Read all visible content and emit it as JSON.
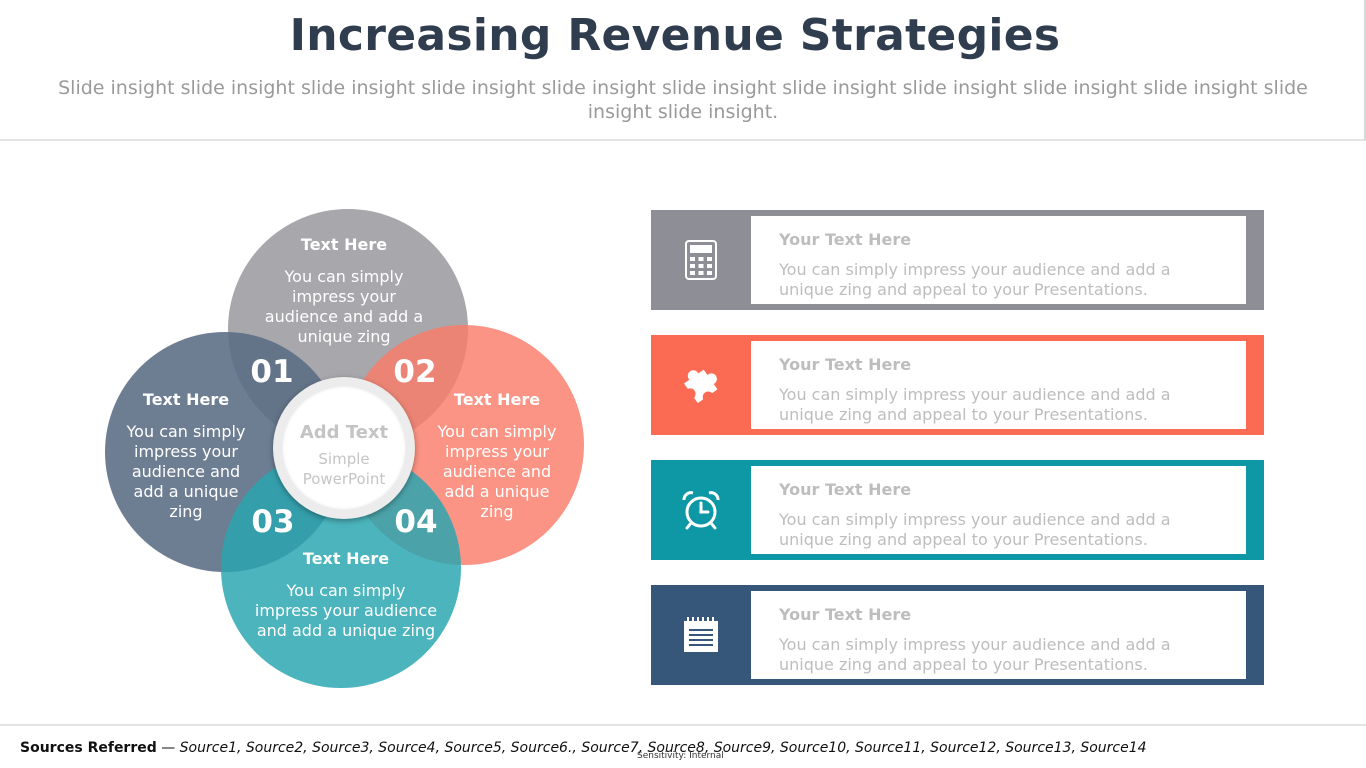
{
  "title": "Increasing Revenue Strategies",
  "subtitle": "Slide insight slide insight slide insight slide insight slide insight slide insight slide insight slide insight slide insight slide insight slide insight slide insight.",
  "petals": [
    {
      "number": "01",
      "title": "Text  Here",
      "body": "You can simply impress your audience and add a unique zing",
      "color": "#a7a6ab"
    },
    {
      "number": "02",
      "title": "Text  Here",
      "body": "You can simply impress your audience and add a unique zing",
      "color": "#fa8670"
    },
    {
      "number": "03",
      "title": "Text  Here",
      "body": "You can simply impress your audience and add a unique zing",
      "color": "#6d7f95"
    },
    {
      "number": "04",
      "title": "Text  Here",
      "body": "You can simply impress your audience and add a unique zing",
      "color": "#3badb6"
    }
  ],
  "hub": {
    "title": "Add Text",
    "line1": "Simple",
    "line2": "PowerPoint"
  },
  "cards": [
    {
      "icon": "calculator-icon",
      "color": "#8e8e96",
      "title": "Your Text  Here",
      "body": "You can simply impress your audience and add a unique zing and appeal to your Presentations."
    },
    {
      "icon": "puzzle-icon",
      "color": "#fb6a52",
      "title": "Your Text  Here",
      "body": "You can simply impress your audience and add a unique zing and appeal to your Presentations."
    },
    {
      "icon": "alarm-clock-icon",
      "color": "#0e97a4",
      "title": "Your Text  Here",
      "body": "You can simply impress your audience and add a unique zing and appeal to your Presentations."
    },
    {
      "icon": "notepad-icon",
      "color": "#36567a",
      "title": "Your Text  Here",
      "body": "You can simply impress your audience and add a unique zing and appeal to your Presentations."
    }
  ],
  "sources": {
    "label": "Sources Referred",
    "separator": " — ",
    "items": [
      "Source1",
      "Source2",
      "Source3",
      "Source4",
      "Source5",
      "Source6",
      "Source7",
      "Source8",
      "Source9",
      "Source10",
      "Source11",
      "Source12",
      "Source13",
      "Source14"
    ],
    "text": "Source1, Source2, Source3, Source4, Source5, Source6., Source7, Source8, Source9, Source10, Source11, Source12, Source13, Source14"
  },
  "sensitivity": "Sensitivity: Internal"
}
